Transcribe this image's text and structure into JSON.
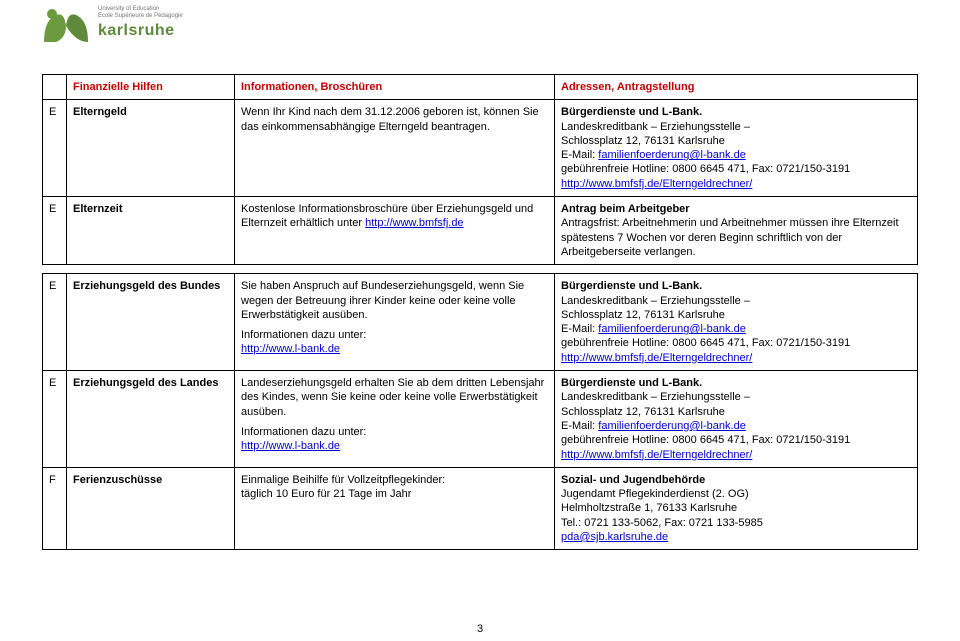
{
  "logo": {
    "inst1": "University of Education",
    "inst2": "Ecole Supérieure de Pédagogie",
    "brand": "karlsruhe",
    "mark_color1": "#6b9a3f",
    "mark_color2": "#5f8a3c"
  },
  "headers": {
    "col0": "",
    "col1": "Finanzielle Hilfen",
    "col2": "Informationen, Broschüren",
    "col3": "Adressen, Antragstellung"
  },
  "rows": [
    {
      "letter": "E",
      "name": "Elterngeld",
      "info_parts": [
        {
          "t": "Wenn Ihr Kind nach dem 31.12.2006 geboren ist, können Sie das einkommensabhängige Elterngeld beantragen."
        }
      ],
      "addr_parts": [
        {
          "t": "Bürgerdienste und L-Bank.",
          "b": true,
          "br": true
        },
        {
          "t": "Landeskreditbank – Erziehungsstelle –",
          "br": true
        },
        {
          "t": "Schlossplatz 12, 76131 Karlsruhe",
          "br": true
        },
        {
          "t": "E-Mail: "
        },
        {
          "t": "familienfoerderung@l-bank.de",
          "link": true,
          "br": true
        },
        {
          "t": "gebührenfreie Hotline: 0800 6645 471, Fax: 0721/150-3191",
          "br": true
        },
        {
          "t": "http://www.bmfsfj.de/Elterngeldrechner/",
          "link": true
        }
      ]
    },
    {
      "letter": "E",
      "name": "Elternzeit",
      "info_parts": [
        {
          "t": "Kostenlose Informationsbroschüre über Erziehungsgeld und Elternzeit erhältlich unter "
        },
        {
          "t": "http://www.bmfsfj.de",
          "link": true
        }
      ],
      "addr_parts": [
        {
          "t": "Antrag beim Arbeitgeber",
          "b": true,
          "br": true
        },
        {
          "t": "Antragsfrist: Arbeitnehmerin und Arbeitnehmer müssen ihre Elternzeit spätestens 7 Wochen vor deren Beginn schriftlich von der Arbeitgeberseite verlangen."
        }
      ]
    }
  ],
  "rows2": [
    {
      "letter": "E",
      "name": "Erziehungsgeld des Bundes",
      "info_parts": [
        {
          "t": "Sie haben Anspruch auf Bundeserziehungsgeld, wenn Sie wegen der Betreuung ihrer Kinder keine oder keine volle Erwerbstätigkeit ausüben.",
          "br": true
        },
        {
          "gap": true
        },
        {
          "t": "Informationen dazu unter:",
          "br": true
        },
        {
          "t": "http://www.l-bank.de",
          "link": true
        }
      ],
      "addr_parts": [
        {
          "t": "Bürgerdienste und L-Bank.",
          "b": true,
          "br": true
        },
        {
          "t": "Landeskreditbank – Erziehungsstelle –",
          "br": true
        },
        {
          "t": "Schlossplatz 12, 76131 Karlsruhe",
          "br": true
        },
        {
          "t": "E-Mail: "
        },
        {
          "t": "familienfoerderung@l-bank.de",
          "link": true,
          "br": true
        },
        {
          "t": "gebührenfreie Hotline: 0800 6645 471, Fax: 0721/150-3191",
          "br": true
        },
        {
          "t": "http://www.bmfsfj.de/Elterngeldrechner/",
          "link": true
        }
      ]
    },
    {
      "letter": "E",
      "name": "Erziehungsgeld des Landes",
      "info_parts": [
        {
          "t": "Landeserziehungsgeld erhalten Sie ab dem dritten Lebensjahr des Kindes, wenn Sie keine oder keine volle Erwerbstätigkeit ausüben.",
          "br": true
        },
        {
          "gap": true
        },
        {
          "t": "Informationen dazu unter:",
          "br": true
        },
        {
          "t": "http://www.l-bank.de",
          "link": true
        }
      ],
      "addr_parts": [
        {
          "t": "Bürgerdienste und L-Bank.",
          "b": true,
          "br": true
        },
        {
          "t": "Landeskreditbank – Erziehungsstelle –",
          "br": true
        },
        {
          "t": "Schlossplatz 12, 76131 Karlsruhe",
          "br": true
        },
        {
          "t": "E-Mail: "
        },
        {
          "t": "familienfoerderung@l-bank.de",
          "link": true,
          "br": true
        },
        {
          "t": "gebührenfreie Hotline: 0800 6645 471, Fax: 0721/150-3191",
          "br": true
        },
        {
          "t": "http://www.bmfsfj.de/Elterngeldrechner/",
          "link": true
        }
      ]
    },
    {
      "letter": "F",
      "name": "Ferienzuschüsse",
      "info_parts": [
        {
          "t": "Einmalige Beihilfe für Vollzeitpflegekinder:",
          "br": true
        },
        {
          "t": "täglich 10 Euro für 21 Tage im Jahr"
        }
      ],
      "addr_parts": [
        {
          "t": "Sozial- und Jugendbehörde",
          "b": true,
          "br": true
        },
        {
          "t": "Jugendamt Pflegekinderdienst (2. OG)",
          "br": true
        },
        {
          "t": "Helmholtzstraße 1, 76133 Karlsruhe",
          "br": true
        },
        {
          "t": "Tel.: 0721 133-5062, Fax: 0721 133-5985",
          "br": true
        },
        {
          "t": "pda@sjb.karlsruhe.de",
          "link": true
        }
      ]
    }
  ],
  "page_number": "3"
}
